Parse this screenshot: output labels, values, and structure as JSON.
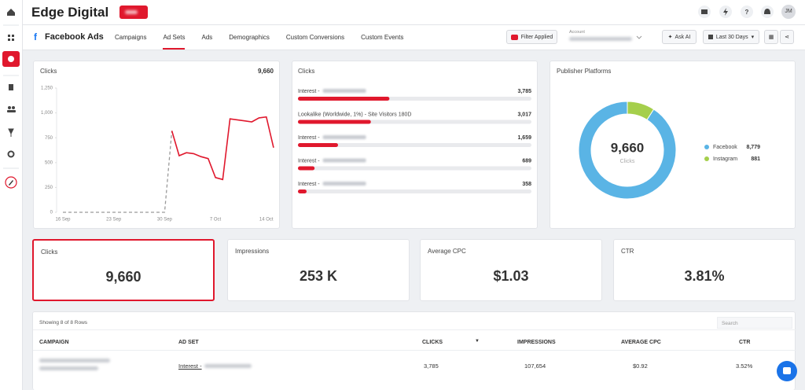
{
  "header": {
    "brand": "Edge Digital",
    "avatar": "JM"
  },
  "nav": {
    "title": "Facebook Ads",
    "tabs": [
      "Campaigns",
      "Ad Sets",
      "Ads",
      "Demographics",
      "Custom Conversions",
      "Custom Events"
    ],
    "active_tab": 1,
    "filter": "Filter Applied",
    "account_label": "Account",
    "ask_ai": "Ask AI",
    "date_range": "Last 30 Days"
  },
  "chart_data": [
    {
      "type": "line",
      "title": "Clicks",
      "total": "9,660",
      "categories": [
        "16 Sep",
        null,
        null,
        null,
        null,
        null,
        null,
        "23 Sep",
        null,
        null,
        null,
        null,
        null,
        null,
        "30 Sep",
        null,
        null,
        null,
        null,
        null,
        null,
        "7 Oct",
        null,
        null,
        null,
        null,
        null,
        null,
        "14 Oct",
        null
      ],
      "series": [
        {
          "color": "#e0182d",
          "values": [
            0,
            0,
            0,
            0,
            0,
            0,
            0,
            0,
            0,
            0,
            0,
            0,
            0,
            0,
            0,
            820,
            570,
            600,
            590,
            560,
            540,
            350,
            330,
            940,
            930,
            920,
            910,
            950,
            960,
            650
          ]
        }
      ],
      "ylim": [
        0,
        1250
      ],
      "yticks": [
        0,
        250,
        500,
        750,
        {
          "value": 1000,
          "label": "1,000"
        },
        {
          "value": 1250,
          "label": "1,250"
        }
      ]
    },
    {
      "type": "hbar",
      "title": "Clicks",
      "categories": [
        "Interest -",
        "Lookalike (Worldwide, 1%) - Site Visitors 180D",
        "Interest -",
        "Interest -",
        "Interest -"
      ],
      "values": [
        3785,
        3017,
        1659,
        689,
        358
      ],
      "value_labels": [
        "3,785",
        "3,017",
        "1,659",
        "689",
        "358"
      ],
      "xlim": [
        0,
        9660
      ],
      "color": "#e0182d"
    },
    {
      "type": "donut",
      "title": "Publisher Platforms",
      "center_value": "9,660",
      "center_label": "Clicks",
      "categories": [
        "Facebook",
        "Instagram"
      ],
      "values": [
        8779,
        881
      ],
      "value_labels": [
        "8,779",
        "881"
      ],
      "colors": [
        "#5ab4e5",
        "#a5cf4c"
      ]
    }
  ],
  "kpis": [
    {
      "label": "Clicks",
      "value": "9,660"
    },
    {
      "label": "Impressions",
      "value": "253 K"
    },
    {
      "label": "Average CPC",
      "value": "$1.03"
    },
    {
      "label": "CTR",
      "value": "3.81%"
    }
  ],
  "selected_kpi": 0,
  "table": {
    "info": "Showing 8 of 8 Rows",
    "search": "Search",
    "columns": [
      "CAMPAIGN",
      "AD SET",
      "CLICKS",
      "IMPRESSIONS",
      "AVERAGE CPC",
      "CTR"
    ],
    "rows": [
      {
        "ad_set": "Interest -",
        "clicks": "3,785",
        "impressions": "107,654",
        "cpc": "$0.92",
        "ctr": "3.52%"
      }
    ]
  }
}
